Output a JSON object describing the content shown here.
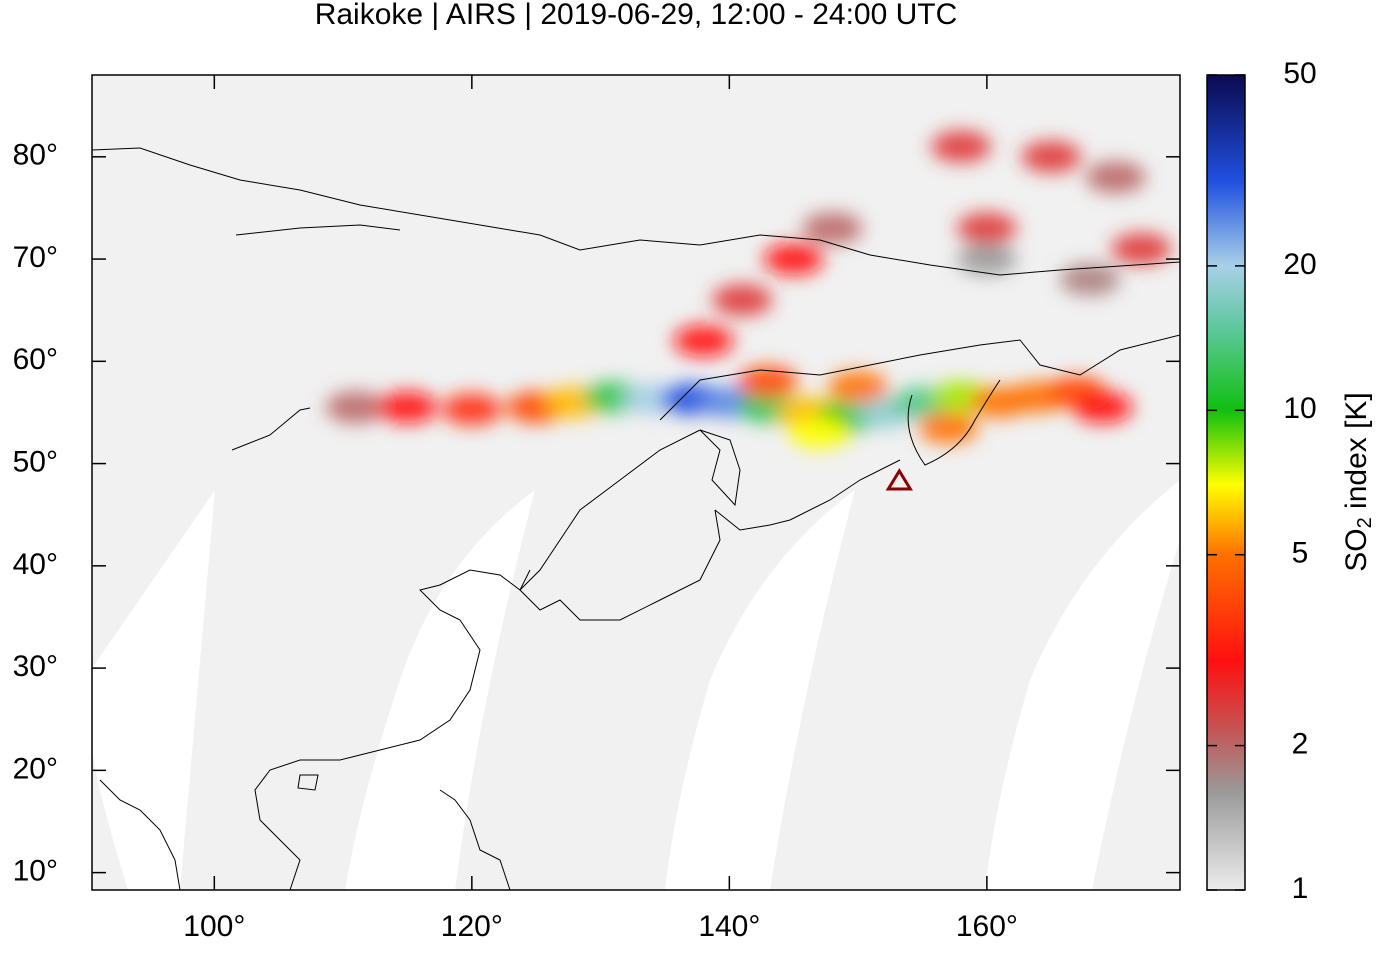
{
  "chart_data": {
    "type": "map",
    "title": "Raikoke | AIRS | 2019-06-29, 12:00 - 24:00 UTC",
    "xlim": [
      90.5,
      175
    ],
    "ylim": [
      8.3,
      88
    ],
    "xticks": [
      {
        "value": 100,
        "label": "100°"
      },
      {
        "value": 120,
        "label": "120°"
      },
      {
        "value": 140,
        "label": "140°"
      },
      {
        "value": 160,
        "label": "160°"
      }
    ],
    "yticks": [
      {
        "value": 10,
        "label": "10°"
      },
      {
        "value": 20,
        "label": "20°"
      },
      {
        "value": 30,
        "label": "30°"
      },
      {
        "value": 40,
        "label": "40°"
      },
      {
        "value": 50,
        "label": "50°"
      },
      {
        "value": 60,
        "label": "60°"
      },
      {
        "value": 70,
        "label": "70°"
      },
      {
        "value": 80,
        "label": "80°"
      }
    ],
    "colorbar": {
      "label": {
        "prefix": "SO",
        "sub": "2",
        "suffix": " index [K]"
      },
      "log_scale": true,
      "lim": [
        1,
        50
      ],
      "ticks": [
        1,
        2,
        5,
        10,
        20,
        50
      ],
      "colormap": [
        {
          "value": 1,
          "color": "#ececec"
        },
        {
          "value": 1.6,
          "color": "#9a9a9a"
        },
        {
          "value": 2.2,
          "color": "#c85050"
        },
        {
          "value": 3,
          "color": "#ff1010"
        },
        {
          "value": 5,
          "color": "#ff7000"
        },
        {
          "value": 7,
          "color": "#ffff00"
        },
        {
          "value": 10,
          "color": "#10c010"
        },
        {
          "value": 15,
          "color": "#60c8a0"
        },
        {
          "value": 20,
          "color": "#a8d0e8"
        },
        {
          "value": 30,
          "color": "#2050e0"
        },
        {
          "value": 50,
          "color": "#0a0a50"
        }
      ]
    },
    "volcano": {
      "lon": 153.2,
      "lat": 48.3,
      "color": "#8b0000"
    },
    "plume": [
      {
        "lon": 111,
        "lat": 55.5,
        "value": 2
      },
      {
        "lon": 115,
        "lat": 55.5,
        "value": 3
      },
      {
        "lon": 120,
        "lat": 55.3,
        "value": 3.5
      },
      {
        "lon": 125,
        "lat": 55.5,
        "value": 4
      },
      {
        "lon": 128,
        "lat": 56,
        "value": 6
      },
      {
        "lon": 131,
        "lat": 56.5,
        "value": 12
      },
      {
        "lon": 134,
        "lat": 56.3,
        "value": 20
      },
      {
        "lon": 137,
        "lat": 56.3,
        "value": 30
      },
      {
        "lon": 140,
        "lat": 56,
        "value": 25
      },
      {
        "lon": 143,
        "lat": 55.5,
        "value": 12
      },
      {
        "lon": 146,
        "lat": 55,
        "value": 6
      },
      {
        "lon": 149,
        "lat": 54.5,
        "value": 10
      },
      {
        "lon": 152,
        "lat": 55,
        "value": 18
      },
      {
        "lon": 155,
        "lat": 56,
        "value": 14
      },
      {
        "lon": 158,
        "lat": 56.5,
        "value": 8
      },
      {
        "lon": 161,
        "lat": 56,
        "value": 5
      },
      {
        "lon": 164,
        "lat": 56.5,
        "value": 5
      },
      {
        "lon": 167,
        "lat": 57,
        "value": 4
      },
      {
        "lon": 169,
        "lat": 55.5,
        "value": 3
      },
      {
        "lon": 143,
        "lat": 58,
        "value": 4
      },
      {
        "lon": 150,
        "lat": 57.5,
        "value": 5
      },
      {
        "lon": 157,
        "lat": 53.5,
        "value": 5
      },
      {
        "lon": 147,
        "lat": 53,
        "value": 7
      },
      {
        "lon": 138,
        "lat": 62,
        "value": 3
      },
      {
        "lon": 141,
        "lat": 66,
        "value": 2.5
      },
      {
        "lon": 145,
        "lat": 70,
        "value": 3
      },
      {
        "lon": 148,
        "lat": 73,
        "value": 2
      },
      {
        "lon": 158,
        "lat": 81,
        "value": 2.5
      },
      {
        "lon": 165,
        "lat": 80,
        "value": 2.5
      },
      {
        "lon": 170,
        "lat": 78,
        "value": 2
      },
      {
        "lon": 160,
        "lat": 73,
        "value": 2.5
      },
      {
        "lon": 172,
        "lat": 71,
        "value": 2.5
      },
      {
        "lon": 168,
        "lat": 68,
        "value": 1.8
      },
      {
        "lon": 160,
        "lat": 70,
        "value": 1.6
      }
    ]
  }
}
